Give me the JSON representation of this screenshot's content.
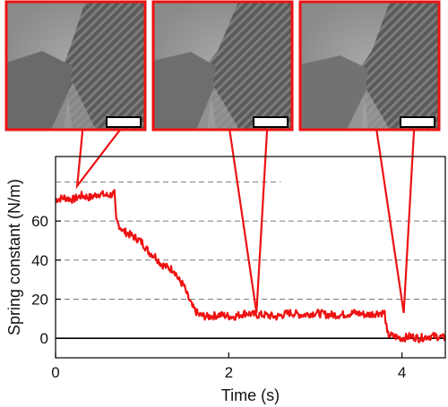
{
  "chart_data": {
    "type": "line",
    "xlabel": "Time (s)",
    "ylabel": "Spring constant (N/m)",
    "xlim": [
      0,
      4.5
    ],
    "ylim": [
      -10,
      93
    ],
    "x_ticks": [
      0,
      2,
      4
    ],
    "y_ticks": [
      0,
      20,
      40,
      60
    ],
    "dashed_gridlines_y": [
      20,
      40,
      60,
      80
    ],
    "zero_line": true,
    "series": [
      {
        "color": "#ee1111",
        "points": [
          [
            0.0,
            71
          ],
          [
            0.1,
            72
          ],
          [
            0.2,
            71
          ],
          [
            0.3,
            73
          ],
          [
            0.4,
            72
          ],
          [
            0.5,
            74
          ],
          [
            0.6,
            73
          ],
          [
            0.68,
            74
          ],
          [
            0.7,
            60
          ],
          [
            0.78,
            55
          ],
          [
            0.86,
            53
          ],
          [
            0.94,
            51
          ],
          [
            1.0,
            49
          ],
          [
            1.08,
            44
          ],
          [
            1.15,
            42
          ],
          [
            1.22,
            38
          ],
          [
            1.3,
            36
          ],
          [
            1.37,
            35
          ],
          [
            1.42,
            30
          ],
          [
            1.48,
            27
          ],
          [
            1.52,
            22
          ],
          [
            1.58,
            16
          ],
          [
            1.65,
            12
          ],
          [
            1.75,
            11
          ],
          [
            1.9,
            12
          ],
          [
            2.05,
            11
          ],
          [
            2.2,
            13
          ],
          [
            2.3,
            12
          ],
          [
            2.4,
            12
          ],
          [
            2.55,
            11
          ],
          [
            2.7,
            13
          ],
          [
            2.85,
            12
          ],
          [
            3.0,
            13
          ],
          [
            3.15,
            12
          ],
          [
            3.3,
            12
          ],
          [
            3.45,
            13
          ],
          [
            3.6,
            12
          ],
          [
            3.72,
            13
          ],
          [
            3.8,
            13
          ],
          [
            3.83,
            2
          ],
          [
            3.9,
            1
          ],
          [
            4.0,
            0
          ],
          [
            4.1,
            1
          ],
          [
            4.2,
            0
          ],
          [
            4.3,
            1
          ],
          [
            4.4,
            1
          ],
          [
            4.5,
            0
          ]
        ]
      }
    ],
    "insets": [
      {
        "name": "micrograph-1",
        "x": 0.25
      },
      {
        "name": "micrograph-2",
        "x": 2.32
      },
      {
        "name": "micrograph-3",
        "x": 4.02
      }
    ],
    "callout_y": 13,
    "callout_first_y": 78
  }
}
